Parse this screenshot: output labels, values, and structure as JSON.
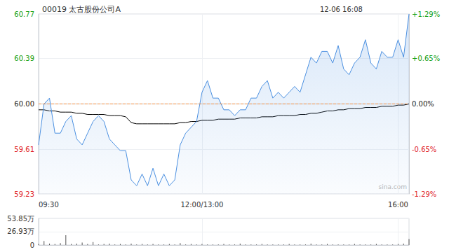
{
  "chart_data": [
    {
      "type": "line",
      "title": "00019 太古股份公司A",
      "subtitle": "12-06 16:08",
      "annotations": [
        "sina.com"
      ],
      "categories": [
        "09:30",
        null,
        null,
        null,
        null,
        null,
        null,
        null,
        null,
        null,
        null,
        null,
        null,
        null,
        null,
        null,
        null,
        null,
        null,
        null,
        null,
        null,
        null,
        null,
        null,
        null,
        null,
        null,
        null,
        null,
        "12:00/13:00",
        null,
        null,
        null,
        null,
        null,
        null,
        null,
        null,
        null,
        null,
        null,
        null,
        null,
        null,
        null,
        null,
        null,
        null,
        null,
        null,
        null,
        null,
        null,
        null,
        null,
        null,
        null,
        null,
        null,
        null,
        null,
        null,
        null,
        null,
        null,
        "16:00",
        null,
        null
      ],
      "series": [
        {
          "color": "#4a8fe0",
          "values": [
            59.65,
            60.0,
            60.05,
            59.75,
            59.75,
            59.85,
            59.9,
            59.7,
            59.65,
            59.75,
            59.85,
            59.9,
            59.85,
            59.7,
            59.65,
            59.6,
            59.6,
            59.35,
            59.3,
            59.4,
            59.3,
            59.45,
            59.3,
            59.4,
            59.3,
            59.35,
            59.65,
            59.75,
            59.8,
            59.85,
            60.1,
            60.2,
            60.05,
            60.05,
            59.95,
            59.95,
            59.9,
            59.95,
            59.95,
            60.05,
            60.05,
            60.15,
            60.2,
            60.05,
            60.1,
            60.05,
            60.1,
            60.15,
            60.1,
            60.25,
            60.4,
            60.35,
            60.45,
            60.45,
            60.35,
            60.5,
            60.3,
            60.25,
            60.35,
            60.4,
            60.55,
            60.35,
            60.3,
            60.45,
            60.4,
            60.4,
            60.55,
            60.4,
            60.77
          ]
        },
        {
          "color": "#000000",
          "values": [
            59.95,
            59.95,
            59.94,
            59.94,
            59.93,
            59.93,
            59.93,
            59.92,
            59.92,
            59.91,
            59.91,
            59.91,
            59.91,
            59.9,
            59.9,
            59.9,
            59.89,
            59.84,
            59.83,
            59.83,
            59.83,
            59.83,
            59.83,
            59.83,
            59.83,
            59.83,
            59.84,
            59.84,
            59.85,
            59.85,
            59.86,
            59.86,
            59.86,
            59.87,
            59.87,
            59.87,
            59.87,
            59.88,
            59.88,
            59.88,
            59.88,
            59.89,
            59.89,
            59.89,
            59.9,
            59.9,
            59.9,
            59.9,
            59.91,
            59.91,
            59.92,
            59.92,
            59.93,
            59.94,
            59.94,
            59.95,
            59.95,
            59.96,
            59.96,
            59.96,
            59.97,
            59.97,
            59.97,
            59.98,
            59.98,
            59.98,
            59.99,
            59.99,
            60.0
          ]
        }
      ],
      "baseline": 60.0,
      "ylim": [
        59.23,
        60.77
      ],
      "yticks": [
        59.23,
        59.61,
        {
          "value": 60.0,
          "label": "60.00"
        },
        60.39,
        60.77
      ],
      "y2lim": [
        -1.29,
        1.29
      ],
      "y2ticks": [
        {
          "value": -1.29,
          "label": "-1.29%"
        },
        {
          "value": -0.65,
          "label": "-0.65%"
        },
        {
          "value": 0,
          "label": "0.00%"
        },
        {
          "value": 0.65,
          "label": "+0.65%"
        },
        {
          "value": 1.29,
          "label": "+1.29%"
        }
      ],
      "grid": true
    },
    {
      "type": "bar",
      "categories": [
        "09:30",
        null,
        null,
        null,
        null,
        null,
        null,
        null,
        null,
        null,
        null,
        null,
        null,
        null,
        null,
        null,
        null,
        null,
        null,
        null,
        null,
        null,
        null,
        null,
        null,
        null,
        null,
        null,
        null,
        null,
        "12:00/13:00",
        null,
        null,
        null,
        null,
        null,
        null,
        null,
        null,
        null,
        null,
        null,
        null,
        null,
        null,
        null,
        null,
        null,
        null,
        null,
        null,
        null,
        null,
        null,
        null,
        null,
        null,
        null,
        null,
        null,
        null,
        null,
        null,
        null,
        null,
        null,
        "16:00",
        null,
        null
      ],
      "values": [
        2,
        8,
        3,
        2,
        4,
        20,
        2,
        3,
        5,
        2,
        6,
        1,
        2,
        3,
        1,
        2,
        1,
        3,
        1,
        2,
        1,
        2,
        1,
        1,
        2,
        1,
        4,
        1,
        2,
        1,
        2,
        1,
        1,
        1,
        2,
        1,
        1,
        3,
        1,
        1,
        1,
        2,
        1,
        1,
        1,
        1,
        2,
        1,
        1,
        1,
        3,
        1,
        1,
        2,
        1,
        1,
        1,
        1,
        2,
        1,
        1,
        1,
        2,
        1,
        1,
        1,
        2,
        3,
        12
      ],
      "color": "#555555",
      "ylim": [
        0,
        53.85
      ],
      "yticks": [
        0,
        {
          "value": 26.93,
          "label": "26.93万"
        },
        {
          "value": 53.85,
          "label": "53.85万"
        }
      ],
      "tick_labels": "y",
      "grid": true
    }
  ]
}
